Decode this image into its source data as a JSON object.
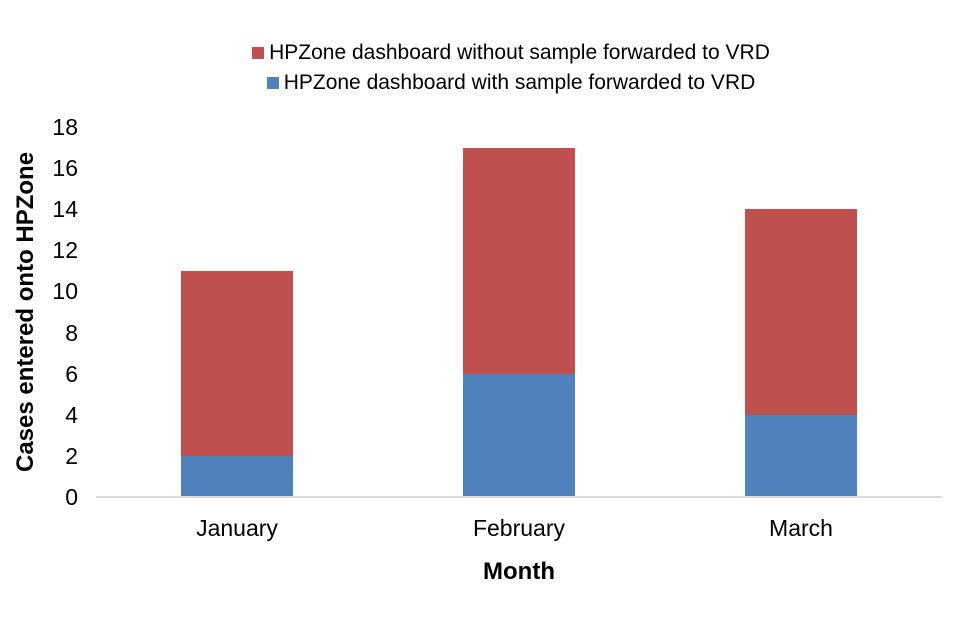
{
  "chart_data": {
    "type": "bar",
    "stacked": true,
    "categories": [
      "January",
      "February",
      "March"
    ],
    "series": [
      {
        "name": "HPZone dashboard with sample forwarded to VRD",
        "color": "#4F81BD",
        "values": [
          2,
          6,
          4
        ]
      },
      {
        "name": "HPZone dashboard without sample forwarded to VRD",
        "color": "#C0504D",
        "values": [
          9,
          11,
          10
        ]
      }
    ],
    "stack_totals": [
      11,
      17,
      14
    ],
    "xlabel": "Month",
    "ylabel": "Cases entered onto HPZone",
    "ylim": [
      0,
      18
    ],
    "ytick_step": 2,
    "ytick_labels": [
      "0",
      "2",
      "4",
      "6",
      "8",
      "10",
      "12",
      "14",
      "16",
      "18"
    ],
    "legend_position": "top",
    "legend_order_top_to_bottom": [
      "without",
      "with"
    ],
    "grid": false,
    "axis_line_color": "#D9D9D9",
    "background_color": "#FFFFFF"
  }
}
